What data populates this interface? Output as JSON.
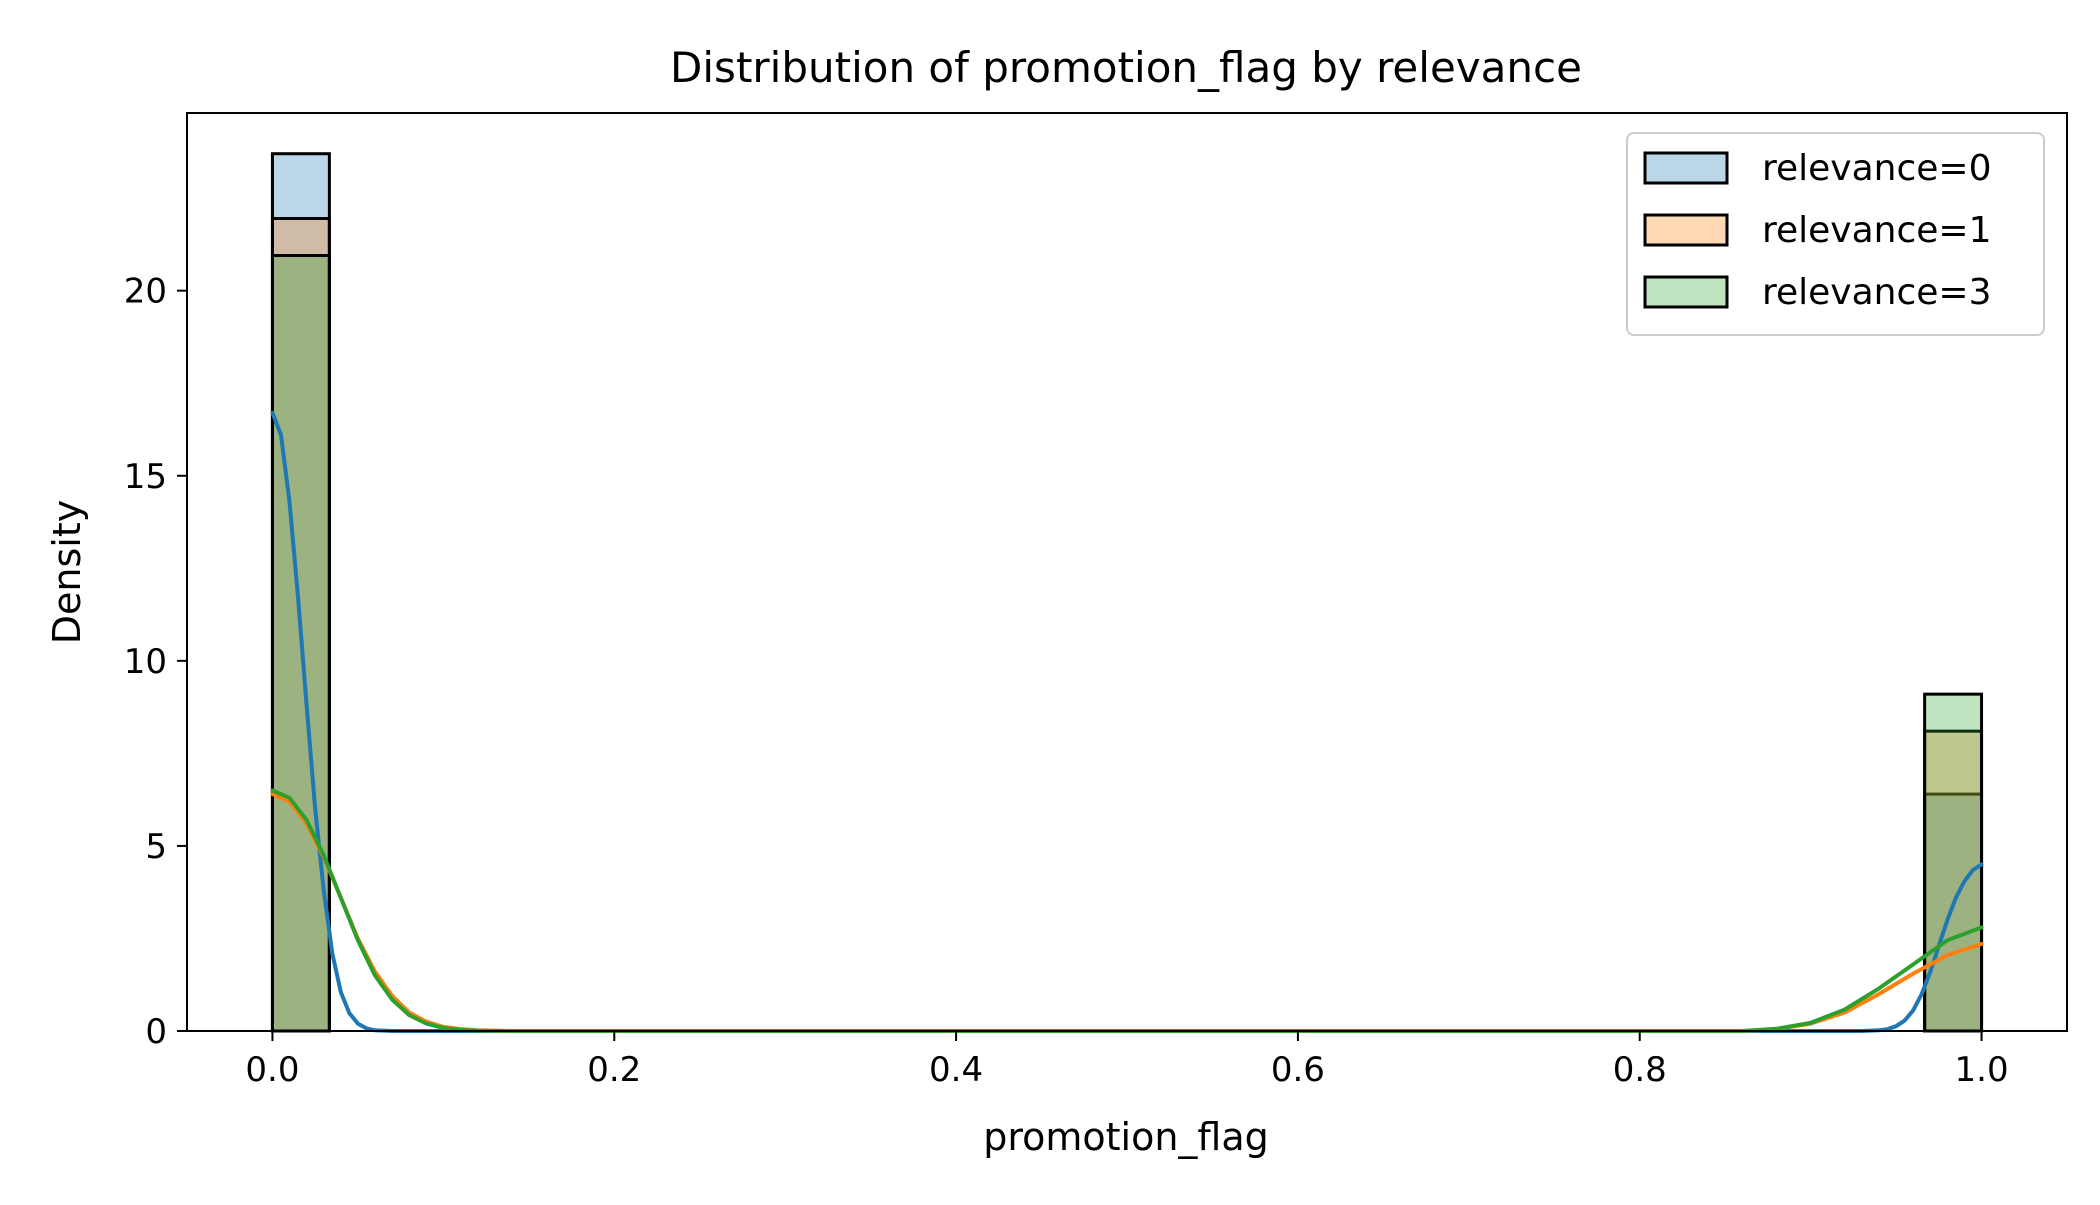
{
  "chart_data": {
    "type": "bar",
    "title": "Distribution of promotion_flag by relevance",
    "xlabel": "promotion_flag",
    "ylabel": "Density",
    "xlim": [
      -0.05,
      1.05
    ],
    "ylim": [
      0,
      24.8
    ],
    "x_ticks": [
      0.0,
      0.2,
      0.4,
      0.6,
      0.8,
      1.0
    ],
    "x_tick_labels": [
      "0.0",
      "0.2",
      "0.4",
      "0.6",
      "0.8",
      "1.0"
    ],
    "y_ticks": [
      0,
      5,
      10,
      15,
      20
    ],
    "y_tick_labels": [
      "0",
      "5",
      "10",
      "15",
      "20"
    ],
    "grid": false,
    "legend_position": "top-right",
    "series": [
      {
        "name": "relevance=0",
        "color": "#1f77b4",
        "bars": [
          {
            "x0": 0.0,
            "x1": 0.0333,
            "density": 23.7
          },
          {
            "x0": 0.9667,
            "x1": 1.0,
            "density": 6.4
          }
        ],
        "kde": [
          [
            0.0,
            16.7
          ],
          [
            0.005,
            16.1
          ],
          [
            0.01,
            14.3
          ],
          [
            0.015,
            11.7
          ],
          [
            0.02,
            8.8
          ],
          [
            0.025,
            6.0
          ],
          [
            0.03,
            3.8
          ],
          [
            0.035,
            2.1
          ],
          [
            0.04,
            1.05
          ],
          [
            0.045,
            0.48
          ],
          [
            0.05,
            0.2
          ],
          [
            0.055,
            0.07
          ],
          [
            0.06,
            0.02
          ],
          [
            0.07,
            0.0
          ],
          [
            0.93,
            0.0
          ],
          [
            0.94,
            0.02
          ],
          [
            0.945,
            0.05
          ],
          [
            0.95,
            0.13
          ],
          [
            0.955,
            0.28
          ],
          [
            0.96,
            0.56
          ],
          [
            0.965,
            1.0
          ],
          [
            0.97,
            1.6
          ],
          [
            0.975,
            2.3
          ],
          [
            0.98,
            3.0
          ],
          [
            0.985,
            3.6
          ],
          [
            0.99,
            4.05
          ],
          [
            0.995,
            4.35
          ],
          [
            1.0,
            4.5
          ]
        ]
      },
      {
        "name": "relevance=1",
        "color": "#ff7f0e",
        "bars": [
          {
            "x0": 0.0,
            "x1": 0.0333,
            "density": 21.95
          },
          {
            "x0": 0.9667,
            "x1": 1.0,
            "density": 8.1
          }
        ],
        "kde": [
          [
            0.0,
            6.4
          ],
          [
            0.01,
            6.2
          ],
          [
            0.02,
            5.6
          ],
          [
            0.03,
            4.7
          ],
          [
            0.04,
            3.6
          ],
          [
            0.05,
            2.5
          ],
          [
            0.06,
            1.6
          ],
          [
            0.07,
            0.95
          ],
          [
            0.08,
            0.5
          ],
          [
            0.09,
            0.25
          ],
          [
            0.1,
            0.11
          ],
          [
            0.11,
            0.05
          ],
          [
            0.12,
            0.02
          ],
          [
            0.14,
            0.0
          ],
          [
            0.86,
            0.0
          ],
          [
            0.88,
            0.05
          ],
          [
            0.9,
            0.2
          ],
          [
            0.92,
            0.5
          ],
          [
            0.94,
            1.0
          ],
          [
            0.96,
            1.55
          ],
          [
            0.98,
            2.05
          ],
          [
            1.0,
            2.35
          ]
        ]
      },
      {
        "name": "relevance=3",
        "color": "#2ca02c",
        "bars": [
          {
            "x0": 0.0,
            "x1": 0.0333,
            "density": 20.95
          },
          {
            "x0": 0.9667,
            "x1": 1.0,
            "density": 9.1
          }
        ],
        "kde": [
          [
            0.0,
            6.5
          ],
          [
            0.01,
            6.3
          ],
          [
            0.02,
            5.7
          ],
          [
            0.03,
            4.75
          ],
          [
            0.04,
            3.6
          ],
          [
            0.05,
            2.45
          ],
          [
            0.06,
            1.5
          ],
          [
            0.07,
            0.85
          ],
          [
            0.08,
            0.43
          ],
          [
            0.09,
            0.2
          ],
          [
            0.1,
            0.08
          ],
          [
            0.11,
            0.03
          ],
          [
            0.12,
            0.01
          ],
          [
            0.14,
            0.0
          ],
          [
            0.86,
            0.0
          ],
          [
            0.88,
            0.06
          ],
          [
            0.9,
            0.22
          ],
          [
            0.92,
            0.58
          ],
          [
            0.94,
            1.15
          ],
          [
            0.96,
            1.8
          ],
          [
            0.98,
            2.45
          ],
          [
            1.0,
            2.8
          ]
        ]
      }
    ]
  }
}
